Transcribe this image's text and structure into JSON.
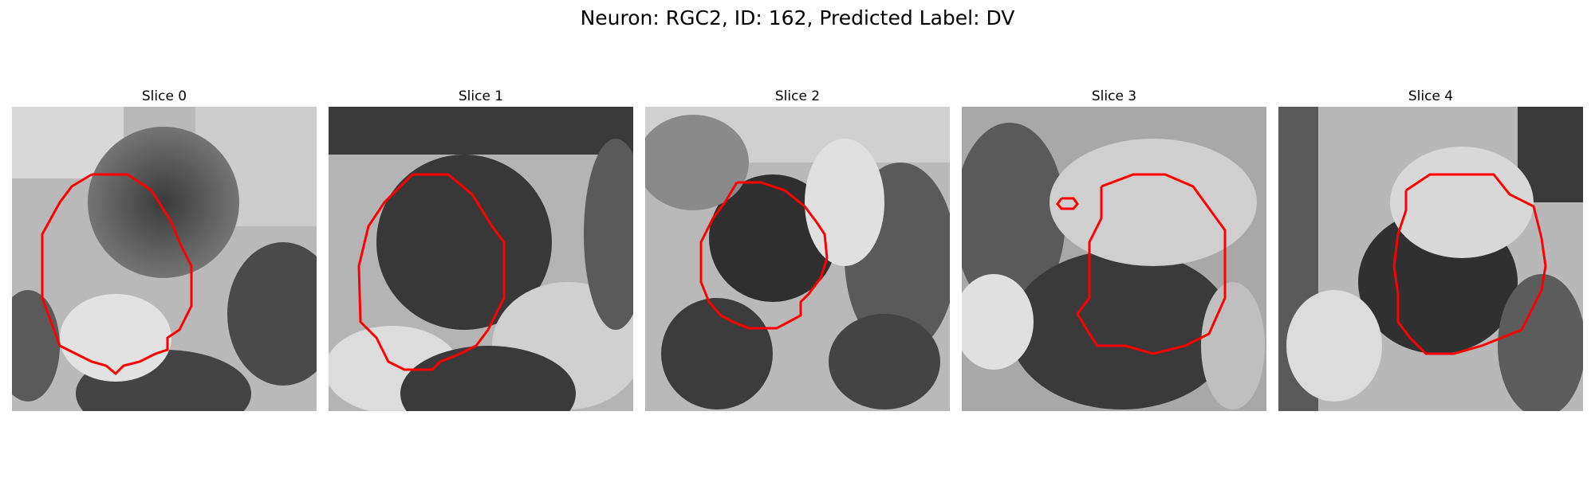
{
  "figure_title": "Neuron: RGC2, ID: 162, Predicted Label: DV",
  "panels": [
    {
      "title": "Slice 0"
    },
    {
      "title": "Slice 1"
    },
    {
      "title": "Slice 2"
    },
    {
      "title": "Slice 3"
    },
    {
      "title": "Slice 4"
    }
  ],
  "colors": {
    "contour": "#ff0000"
  },
  "image_description": "Five grayscale microscopy image slices with a red contour outlining the neuron region in each."
}
